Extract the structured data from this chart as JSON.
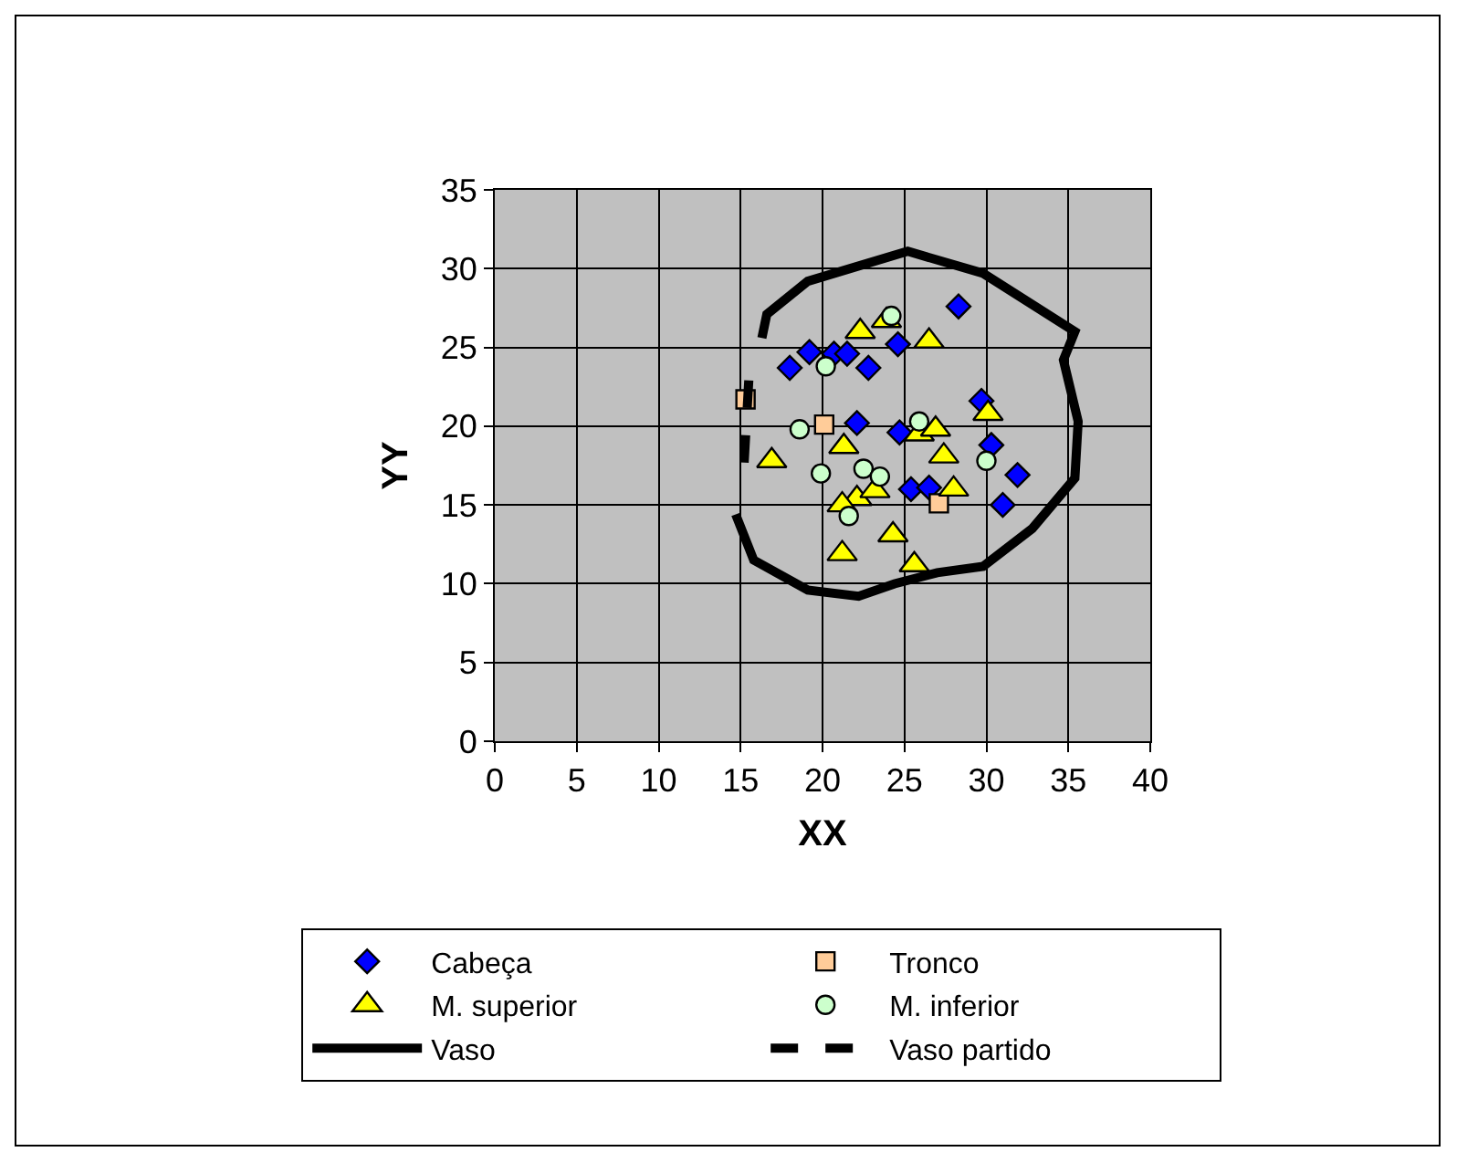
{
  "chart_data": {
    "type": "scatter",
    "xlabel": "XX",
    "ylabel": "YY",
    "xlim": [
      0,
      40
    ],
    "xticks": [
      0,
      5,
      10,
      15,
      20,
      25,
      30,
      35,
      40
    ],
    "ylim": [
      0,
      35
    ],
    "yticks": [
      0,
      5,
      10,
      15,
      20,
      25,
      30,
      35
    ],
    "grid": true,
    "legend": "bottom",
    "series": [
      {
        "name": "Cabeça",
        "marker": "diamond",
        "color": "#0000ff",
        "x": [
          28.3,
          19.2,
          20.7,
          21.5,
          18.0,
          22.8,
          24.6,
          29.7,
          22.1,
          24.7,
          30.3,
          31.9,
          25.4,
          26.5,
          31.0
        ],
        "values": [
          27.6,
          24.7,
          24.6,
          24.6,
          23.7,
          23.7,
          25.2,
          21.6,
          20.2,
          19.6,
          18.8,
          16.9,
          16.0,
          16.1,
          15.0
        ]
      },
      {
        "name": "Tronco",
        "marker": "square",
        "color": "#ffcc99",
        "x": [
          15.3,
          20.1,
          27.1
        ],
        "values": [
          21.7,
          20.1,
          15.1
        ]
      },
      {
        "name": "M. superior",
        "marker": "triangle",
        "color": "#ffff00",
        "x": [
          22.3,
          23.9,
          26.5,
          30.1,
          25.9,
          26.9,
          21.3,
          16.9,
          27.4,
          28.0,
          22.1,
          23.2,
          21.2,
          24.3,
          21.2,
          25.6
        ],
        "values": [
          26.0,
          26.7,
          25.4,
          20.8,
          19.5,
          19.8,
          18.7,
          17.8,
          18.1,
          16.0,
          15.4,
          15.9,
          15.0,
          13.1,
          11.9,
          11.2
        ]
      },
      {
        "name": "M. inferior",
        "marker": "circle",
        "color": "#ccffcc",
        "x": [
          24.2,
          20.2,
          18.6,
          25.9,
          30.0,
          19.9,
          22.5,
          23.5,
          21.6
        ],
        "values": [
          27.0,
          23.8,
          19.8,
          20.3,
          17.8,
          17.0,
          17.3,
          16.8,
          14.3
        ]
      },
      {
        "name": "Vaso",
        "type": "line",
        "marker": "none",
        "line_style": "solid",
        "color": "#000000",
        "x": [
          16.3,
          16.6,
          19.1,
          25.2,
          29.8,
          35.4,
          34.7,
          35.6,
          35.4,
          32.8,
          29.8,
          27.0,
          24.4,
          22.2,
          19.1,
          15.8,
          14.7
        ],
        "values": [
          25.6,
          27.1,
          29.2,
          31.1,
          29.7,
          26.0,
          24.2,
          20.3,
          16.7,
          13.5,
          11.1,
          10.7,
          10.0,
          9.2,
          9.6,
          11.5,
          14.4
        ]
      },
      {
        "name": "Vaso partido",
        "type": "line",
        "marker": "none",
        "line_style": "dashed",
        "color": "#000000",
        "x": [
          15.5,
          15.2
        ],
        "values": [
          22.9,
          17.4
        ]
      }
    ]
  }
}
